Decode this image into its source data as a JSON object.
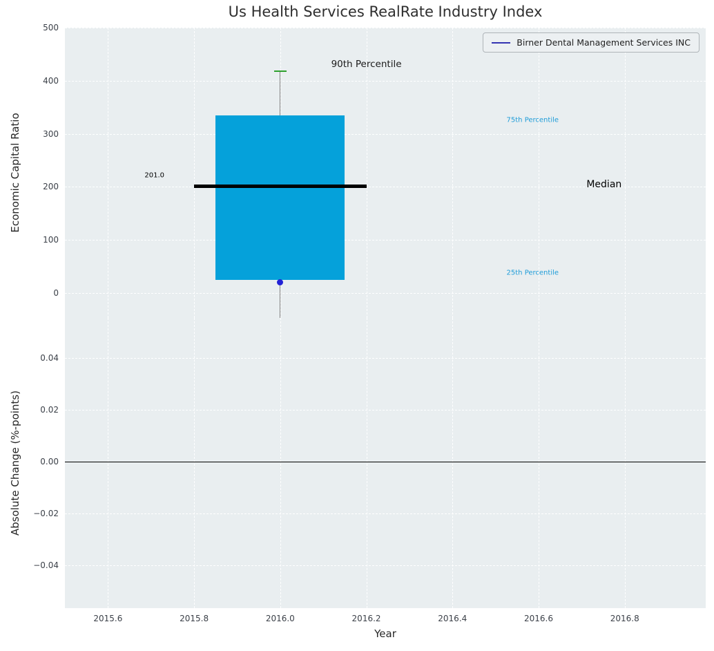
{
  "legend": {
    "label": "Birner Dental Management Services INC",
    "line_color": "#3333b2"
  },
  "colors": {
    "axes_background": "#e9eef0",
    "grid": "#ffffff",
    "box_fill": "#05a1da",
    "median_line": "#000000",
    "whisker": "#7f7f7f",
    "p90_cap": "#2ca02c",
    "company_point": "#2121d6",
    "percentile_label": "#1e9cd8",
    "zero_line": "#000000",
    "tick_label": "#3b4048"
  },
  "chart_data": {
    "type": "boxplot",
    "title": "Us Health Services RealRate Industry Index",
    "xlabel": "Year",
    "x": 2016,
    "x_axis": {
      "range": [
        2015.5,
        2016.988
      ],
      "ticks": [
        2015.6,
        2015.8,
        2016.0,
        2016.2,
        2016.4,
        2016.6,
        2016.8
      ],
      "grid": true
    },
    "top_panel": {
      "ylabel": "Economic Capital Ratio",
      "ylim": [
        -47,
        500
      ],
      "yticks": [
        0,
        100,
        200,
        300,
        400,
        500
      ],
      "grid": true,
      "box": {
        "q1": 25,
        "q3": 335,
        "median": 201,
        "p90": 418,
        "box_halfwidth": 0.15,
        "median_halfwidth": 0.2,
        "cap_halfwidth": 0.014
      },
      "company_point": {
        "name": "Birner Dental Management Services INC",
        "x": 2016,
        "y": 20
      },
      "annotations": [
        {
          "text": "201.0",
          "x": 2015.708,
          "y": 221,
          "color": "#000000",
          "size": 10
        },
        {
          "text": "90th Percentile",
          "x": 2016.2,
          "y": 431,
          "color": "#1a1a1a",
          "size": 13.5
        },
        {
          "text": "75th Percentile",
          "x": 2016.586,
          "y": 326,
          "color": "#1e9cd8",
          "size": 10
        },
        {
          "text": "Median",
          "x": 2016.752,
          "y": 204,
          "color": "#000000",
          "size": 14
        },
        {
          "text": "25th Percentile",
          "x": 2016.586,
          "y": 38,
          "color": "#1e9cd8",
          "size": 10
        }
      ]
    },
    "bottom_panel": {
      "ylabel": "Absolute Change (%-points)",
      "ylim": [
        -0.0565,
        0.0555
      ],
      "yticks": [
        -0.04,
        -0.02,
        0.0,
        0.02,
        0.04
      ],
      "grid": true,
      "zero_line": 0.0,
      "series_values": []
    }
  }
}
